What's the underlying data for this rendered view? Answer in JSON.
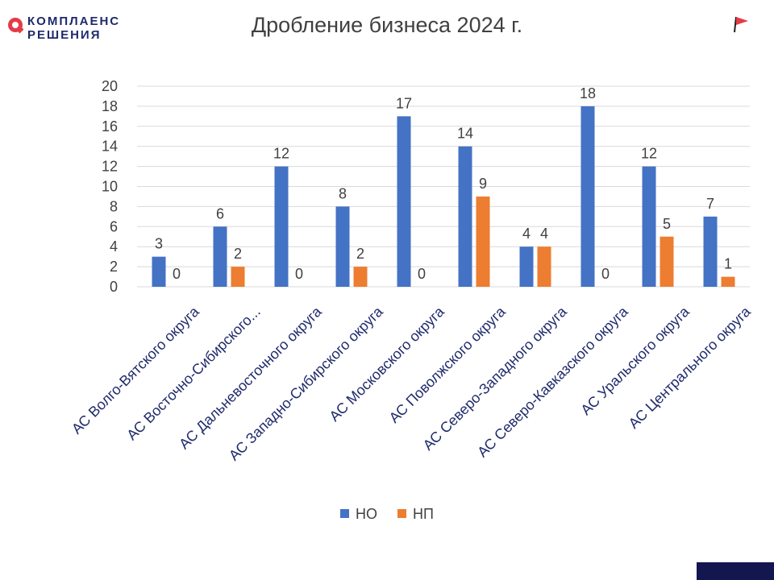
{
  "logo": {
    "line1": "КОМПЛАЕНС",
    "line2": "РЕШЕНИЯ"
  },
  "header": {
    "title": "Дробление бизнеса 2024 г."
  },
  "icons": {
    "flag": "flag-icon"
  },
  "colors": {
    "series1": "#4472c4",
    "series2": "#ed7d31",
    "grid": "#d9d9d9",
    "corner": "#141650",
    "brand_red": "#e53a48"
  },
  "chart_data": {
    "type": "bar",
    "title": "Дробление бизнеса 2024 г.",
    "categories": [
      "АС Волго-Вятского округа",
      "АС Восточно-Сибирского...",
      "АС Дальневосточного округа",
      "АС Западно-Сибирского округа",
      "АС Московского округа",
      "АС Поволжского округа",
      "АС Северо-Западного округа",
      "АС Северо-Кавказского округа",
      "АС Уральского округа",
      "АС Центрального округа"
    ],
    "series": [
      {
        "name": "НО",
        "values": [
          3,
          6,
          12,
          8,
          17,
          14,
          4,
          18,
          12,
          7
        ]
      },
      {
        "name": "НП",
        "values": [
          0,
          2,
          0,
          2,
          0,
          9,
          4,
          0,
          5,
          1
        ]
      }
    ],
    "ylim": [
      0,
      20
    ],
    "yticks": [
      "0",
      "2",
      "4",
      "6",
      "8",
      "10",
      "12",
      "14",
      "16",
      "18",
      "20"
    ],
    "grid": true,
    "data_labels": true,
    "legend_position": "bottom",
    "xlabel": "",
    "ylabel": ""
  }
}
